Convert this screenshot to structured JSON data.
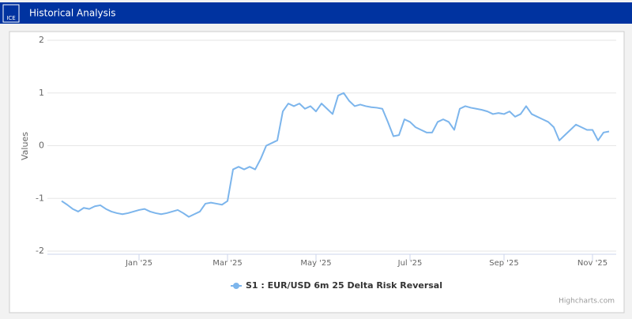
{
  "header": {
    "logo": "ICE",
    "title": "Historical Analysis"
  },
  "credit": "Highcharts.com",
  "chart_data": {
    "type": "line",
    "y_label": "Values",
    "categories": [
      null,
      null,
      null,
      null,
      null,
      null,
      null,
      null,
      null,
      null,
      null,
      null,
      null,
      null,
      "Jan '25",
      null,
      null,
      null,
      null,
      null,
      null,
      null,
      null,
      null,
      null,
      null,
      null,
      null,
      null,
      null,
      "Mar '25",
      null,
      null,
      null,
      null,
      null,
      null,
      null,
      null,
      null,
      null,
      null,
      null,
      null,
      null,
      null,
      "May '25",
      null,
      null,
      null,
      null,
      null,
      null,
      null,
      null,
      null,
      null,
      null,
      null,
      null,
      null,
      null,
      null,
      "Jul '25",
      null,
      null,
      null,
      null,
      null,
      null,
      null,
      null,
      null,
      null,
      null,
      null,
      null,
      null,
      null,
      null,
      "Sep '25",
      null,
      null,
      null,
      null,
      null,
      null,
      null,
      null,
      null,
      null,
      null,
      null,
      null,
      null,
      null,
      "Nov '25",
      null,
      null,
      null
    ],
    "series": [
      {
        "name": "S1 : EUR/USD 6m 25 Delta Risk Reversal",
        "color": "#7cb5ec",
        "values": [
          -1.05,
          -1.12,
          -1.2,
          -1.25,
          -1.18,
          -1.2,
          -1.15,
          -1.13,
          -1.2,
          -1.25,
          -1.28,
          -1.3,
          -1.28,
          -1.25,
          -1.22,
          -1.2,
          -1.25,
          -1.28,
          -1.3,
          -1.28,
          -1.25,
          -1.22,
          -1.28,
          -1.35,
          -1.3,
          -1.25,
          -1.1,
          -1.08,
          -1.1,
          -1.12,
          -1.05,
          -0.45,
          -0.4,
          -0.45,
          -0.4,
          -0.45,
          -0.25,
          0.0,
          0.05,
          0.1,
          0.65,
          0.8,
          0.75,
          0.8,
          0.7,
          0.75,
          0.65,
          0.8,
          0.7,
          0.6,
          0.95,
          1.0,
          0.85,
          0.75,
          0.78,
          0.75,
          0.73,
          0.72,
          0.7,
          0.45,
          0.18,
          0.2,
          0.5,
          0.45,
          0.35,
          0.3,
          0.25,
          0.25,
          0.45,
          0.5,
          0.45,
          0.3,
          0.7,
          0.75,
          0.72,
          0.7,
          0.68,
          0.65,
          0.6,
          0.62,
          0.6,
          0.65,
          0.55,
          0.6,
          0.75,
          0.6,
          0.55,
          0.5,
          0.45,
          0.35,
          0.1,
          0.2,
          0.3,
          0.4,
          0.35,
          0.3,
          0.3,
          0.1,
          0.25,
          0.27
        ]
      }
    ],
    "ylim": [
      -2,
      2
    ],
    "yticks": [
      -2,
      -1,
      0,
      1,
      2
    ],
    "grid": true
  }
}
